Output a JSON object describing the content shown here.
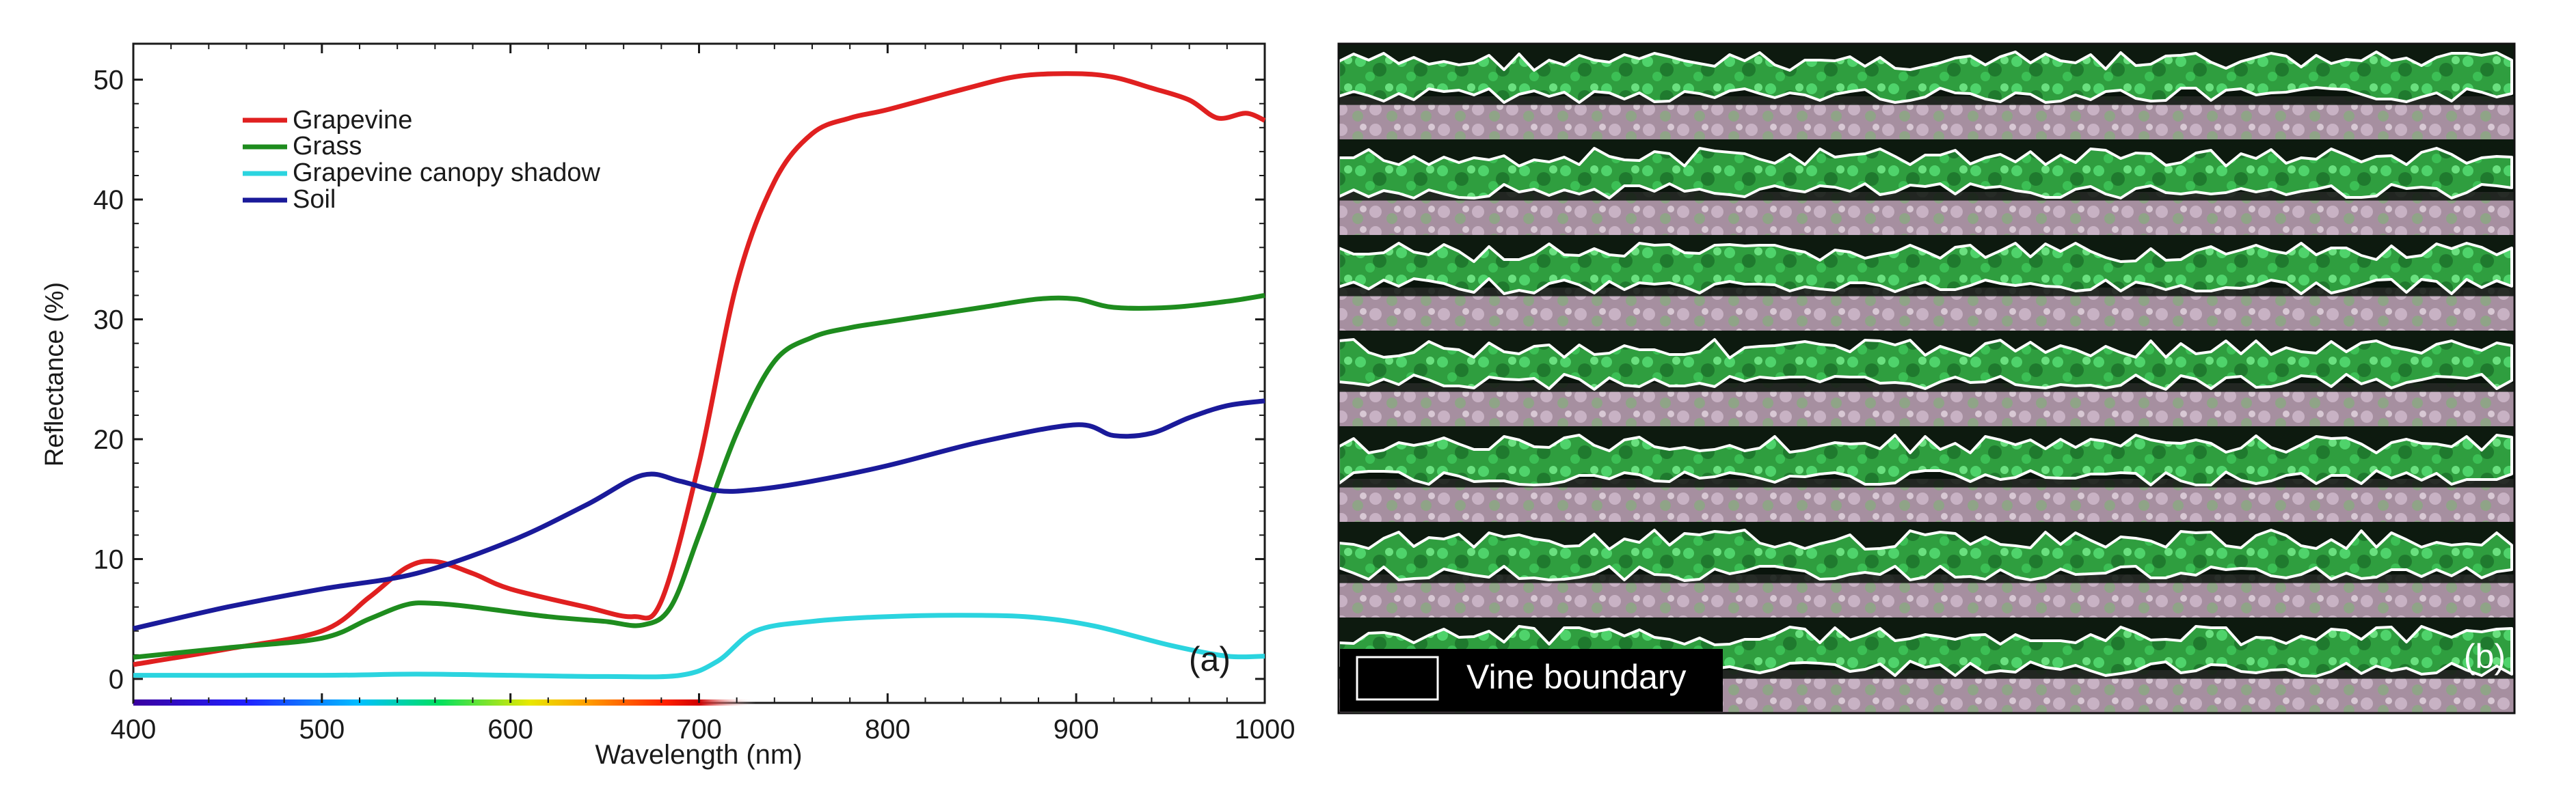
{
  "chart_data": [
    {
      "type": "line",
      "panel_label": "(a)",
      "xlabel": "Wavelength (nm)",
      "ylabel": "Reflectance (%)",
      "xlim": [
        400,
        1000
      ],
      "ylim": [
        -2,
        53
      ],
      "xticks": [
        400,
        500,
        600,
        700,
        800,
        900,
        1000
      ],
      "yticks": [
        0,
        10,
        20,
        30,
        40,
        50
      ],
      "legend_position": "top-left",
      "series": [
        {
          "name": "Grapevine",
          "color": "#e02020",
          "x": [
            400,
            450,
            500,
            525,
            545,
            560,
            580,
            600,
            640,
            665,
            680,
            700,
            720,
            740,
            760,
            780,
            800,
            840,
            870,
            900,
            920,
            940,
            960,
            975,
            990,
            1000
          ],
          "y": [
            1.2,
            2.5,
            4.0,
            6.8,
            9.3,
            9.8,
            8.8,
            7.5,
            6.0,
            5.2,
            6.5,
            18.0,
            33.0,
            41.5,
            45.5,
            46.8,
            47.5,
            49.2,
            50.3,
            50.5,
            50.2,
            49.3,
            48.3,
            46.8,
            47.2,
            46.6
          ]
        },
        {
          "name": "Grass",
          "color": "#1e8c1e",
          "x": [
            400,
            450,
            500,
            525,
            545,
            560,
            580,
            620,
            650,
            670,
            685,
            700,
            720,
            740,
            760,
            780,
            800,
            850,
            880,
            900,
            920,
            950,
            980,
            1000
          ],
          "y": [
            1.8,
            2.6,
            3.4,
            5.0,
            6.2,
            6.3,
            6.0,
            5.2,
            4.8,
            4.5,
            6.0,
            12.0,
            20.5,
            26.5,
            28.5,
            29.3,
            29.8,
            31.0,
            31.7,
            31.7,
            31.0,
            31.0,
            31.5,
            32.0
          ]
        },
        {
          "name": "Grapevine canopy shadow",
          "color": "#2bd4df",
          "x": [
            400,
            500,
            550,
            600,
            650,
            690,
            710,
            730,
            760,
            800,
            850,
            880,
            910,
            950,
            980,
            1000
          ],
          "y": [
            0.3,
            0.3,
            0.4,
            0.3,
            0.2,
            0.3,
            1.5,
            4.0,
            4.8,
            5.2,
            5.3,
            5.1,
            4.4,
            2.8,
            1.9,
            1.9
          ]
        },
        {
          "name": "Soil",
          "color": "#1a1a9a",
          "x": [
            400,
            450,
            500,
            550,
            600,
            640,
            670,
            690,
            710,
            730,
            760,
            800,
            850,
            900,
            920,
            940,
            960,
            980,
            1000
          ],
          "y": [
            4.2,
            6.0,
            7.5,
            8.8,
            11.5,
            14.5,
            17.0,
            16.5,
            15.7,
            15.8,
            16.5,
            17.8,
            19.8,
            21.2,
            20.3,
            20.5,
            21.8,
            22.8,
            23.2
          ]
        }
      ]
    },
    {
      "type": "image",
      "panel_label": "(b)",
      "legend_label": "Vine boundary",
      "vine_rows": 7
    }
  ]
}
